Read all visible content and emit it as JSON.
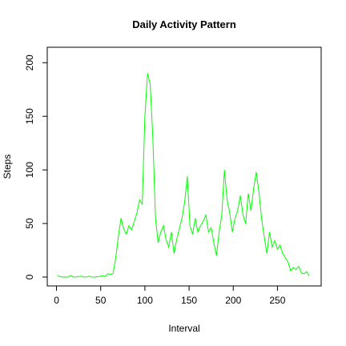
{
  "chart_data": {
    "type": "line",
    "title": "Daily Activity Pattern",
    "x_label": "Interval",
    "y_label": "Steps",
    "x": [
      1,
      4,
      7,
      10,
      13,
      16,
      19,
      22,
      25,
      28,
      31,
      34,
      37,
      40,
      43,
      46,
      49,
      52,
      55,
      58,
      61,
      64,
      67,
      70,
      73,
      76,
      79,
      82,
      85,
      88,
      91,
      94,
      97,
      100,
      103,
      106,
      109,
      112,
      115,
      118,
      121,
      124,
      127,
      130,
      133,
      136,
      139,
      142,
      145,
      148,
      151,
      154,
      157,
      160,
      163,
      166,
      169,
      172,
      175,
      178,
      181,
      184,
      187,
      190,
      193,
      196,
      199,
      202,
      205,
      208,
      211,
      214,
      217,
      220,
      223,
      226,
      229,
      232,
      235,
      238,
      241,
      244,
      247,
      250,
      253,
      256,
      259,
      262,
      265,
      268,
      271,
      274,
      277,
      280,
      283,
      286
    ],
    "series": [
      {
        "name": "Steps",
        "color": "#00ff00",
        "values": [
          1.7,
          0.3,
          0.1,
          0.2,
          0,
          1.6,
          0.1,
          0.2,
          0.5,
          0.9,
          0,
          0.2,
          0.8,
          0.1,
          0,
          0.3,
          0.7,
          1.2,
          0.5,
          3.1,
          2.5,
          3.4,
          18,
          38,
          55,
          45,
          40,
          48,
          44,
          52,
          60,
          72,
          68,
          150,
          190,
          180,
          130,
          55,
          32,
          42,
          48,
          35,
          28,
          42,
          22,
          35,
          45,
          55,
          70,
          94,
          48,
          40,
          55,
          42,
          48,
          52,
          58,
          42,
          46,
          32,
          20,
          42,
          58,
          100,
          72,
          60,
          42,
          55,
          62,
          76,
          58,
          50,
          78,
          62,
          82,
          98,
          80,
          55,
          38,
          22,
          42,
          28,
          34,
          26,
          30,
          22,
          18,
          14,
          6,
          9,
          7,
          10,
          4,
          3,
          5,
          1
        ]
      }
    ],
    "xlim": [
      -10.48,
      299.48
    ],
    "ylim": [
      -8.25,
      214.42
    ],
    "xticks": [
      0,
      50,
      100,
      150,
      200,
      250
    ],
    "yticks": [
      0,
      50,
      100,
      150,
      200
    ]
  }
}
